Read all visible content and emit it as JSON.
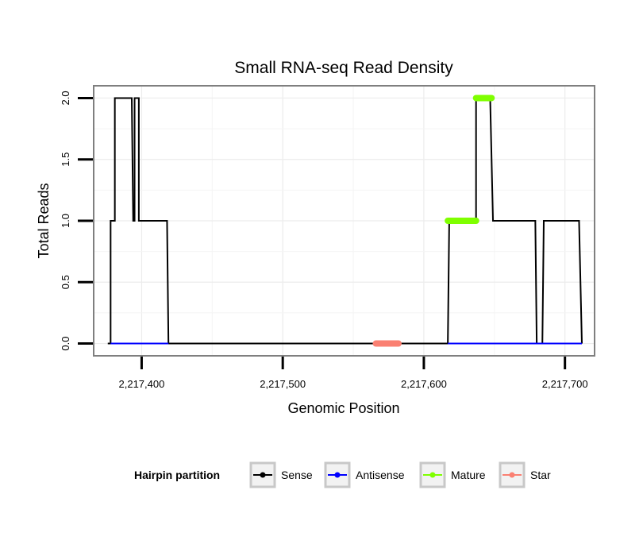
{
  "chart_data": {
    "type": "line",
    "title": "Small RNA-seq Read Density",
    "xlabel": "Genomic Position",
    "ylabel": "Total Reads",
    "xlim": [
      2217366,
      2217721
    ],
    "ylim": [
      -0.1,
      2.1
    ],
    "x_ticks": [
      2217400,
      2217500,
      2217600,
      2217700
    ],
    "x_tick_labels": [
      "2,217,400",
      "2,217,500",
      "2,217,600",
      "2,217,700"
    ],
    "y_ticks": [
      0,
      0.5,
      1,
      1.5,
      2
    ],
    "y_tick_labels": [
      "0.0",
      "0.5",
      "1.0",
      "1.5",
      "2.0"
    ],
    "grid": true,
    "legend": {
      "title": "Hairpin partition",
      "position": "bottom",
      "entries": [
        "Sense",
        "Antisense",
        "Mature",
        "Star"
      ]
    },
    "series": [
      {
        "name": "Sense",
        "color": "#000000",
        "x": [
          2217376,
          2217378,
          2217378,
          2217381,
          2217381,
          2217388,
          2217393,
          2217394,
          2217395,
          2217395,
          2217398,
          2217398,
          2217401,
          2217418,
          2217419,
          2217420,
          2217560,
          2217617,
          2217618,
          2217618,
          2217637,
          2217637,
          2217647,
          2217649,
          2217679,
          2217680,
          2217684,
          2217685,
          2217696,
          2217710,
          2217712
        ],
        "y": [
          0,
          0,
          1,
          1,
          2,
          2,
          2,
          1,
          1,
          2,
          2,
          1,
          1,
          1,
          0,
          0,
          0,
          0,
          1,
          1,
          1,
          2,
          2,
          1,
          1,
          0,
          0,
          1,
          1,
          1,
          0
        ]
      },
      {
        "name": "Antisense",
        "color": "#0000ff",
        "x": [
          2217378,
          2217419,
          2217617,
          2217712
        ],
        "y": [
          0,
          0,
          0,
          0
        ],
        "segments": [
          [
            2217378,
            2217419
          ],
          [
            2217617,
            2217712
          ]
        ]
      },
      {
        "name": "Mature",
        "color": "#7fff00",
        "segments": [
          {
            "x0": 2217617,
            "x1": 2217637,
            "y": 1
          },
          {
            "x0": 2217637,
            "x1": 2217648,
            "y": 2
          }
        ]
      },
      {
        "name": "Star",
        "color": "#fa8072",
        "segments": [
          {
            "x0": 2217566,
            "x1": 2217582,
            "y": 0
          }
        ]
      }
    ]
  }
}
